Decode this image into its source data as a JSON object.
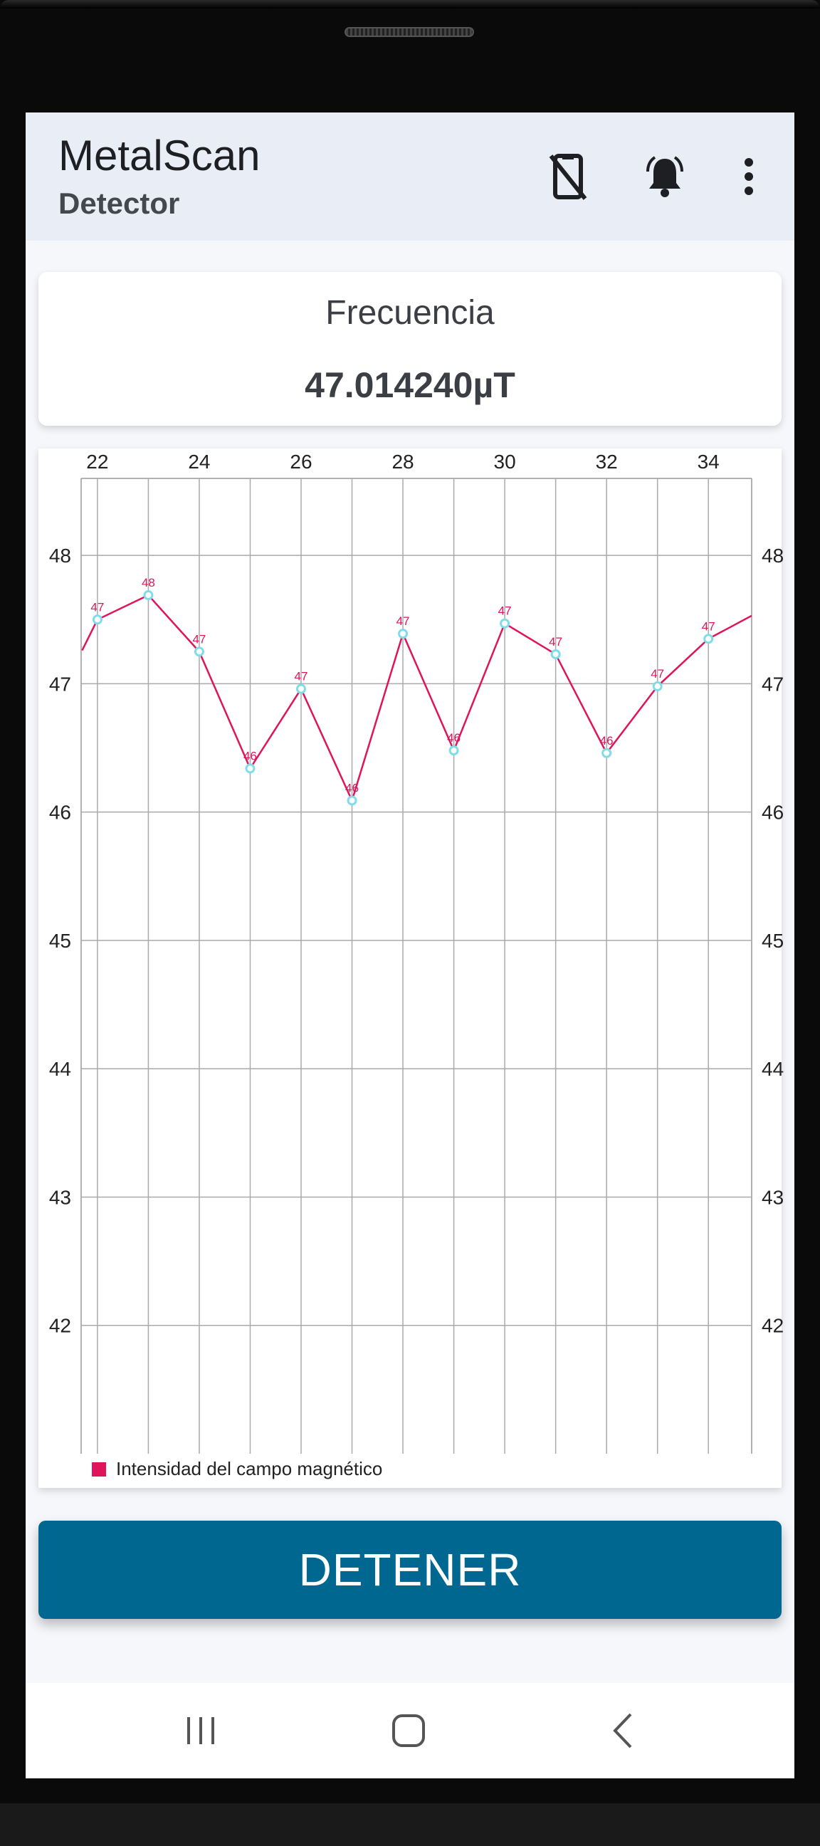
{
  "app": {
    "title": "MetalScan",
    "subtitle": "Detector"
  },
  "toolbar": {
    "icons": [
      "no-phone-icon",
      "bell-alert-icon",
      "more-vert-icon"
    ]
  },
  "frequency_card": {
    "label": "Frecuencia",
    "value": "47.014240µT"
  },
  "chart_data": {
    "type": "line",
    "x": [
      21.7,
      22,
      23,
      24,
      25,
      26,
      27,
      28,
      29,
      30,
      31,
      32,
      33,
      34,
      34.85
    ],
    "series": [
      {
        "name": "Intensidad del campo magnético",
        "color": "#e0145a",
        "values": [
          47.26,
          47.5,
          47.69,
          47.25,
          46.34,
          46.96,
          46.09,
          47.39,
          46.48,
          47.47,
          47.23,
          46.46,
          46.98,
          47.35,
          47.53
        ],
        "labels": [
          "",
          "47",
          "48",
          "47",
          "46",
          "47",
          "46",
          "47",
          "46",
          "47",
          "47",
          "46",
          "47",
          "47",
          ""
        ]
      }
    ],
    "xticks": [
      "22",
      "24",
      "26",
      "28",
      "30",
      "32",
      "34"
    ],
    "yticks_left": [
      "48",
      "47",
      "46",
      "45",
      "44",
      "43",
      "42"
    ],
    "yticks_right": [
      "48",
      "47",
      "46",
      "45",
      "44",
      "43",
      "42"
    ],
    "xlim": [
      21.68,
      34.85
    ],
    "ylim": [
      41.0,
      48.6
    ],
    "grid": true,
    "legend": "bottom-left",
    "point_color": "#7fdce8"
  },
  "actions": {
    "stop_label": "DETENER"
  },
  "navbar": {
    "icons": [
      "recent-apps-icon",
      "home-icon",
      "back-icon"
    ]
  }
}
